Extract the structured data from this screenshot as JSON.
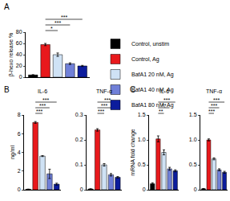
{
  "chart_data": [
    {
      "type": "bar",
      "panel": "A",
      "ylabel": "β-hexo release %",
      "legend": "right",
      "grid": false,
      "tick_labels": "y",
      "ylim": [
        0,
        80
      ],
      "yticks": [
        0,
        20,
        40,
        60,
        80
      ],
      "series": [
        {
          "name": "Control, unstim",
          "color": "#000000",
          "values": [
            4
          ],
          "errors": [
            0.5
          ]
        },
        {
          "name": "Control, Ag",
          "color": "#e8191c",
          "values": [
            58
          ],
          "errors": [
            2
          ]
        },
        {
          "name": "BafA1 20 nM, Ag",
          "color": "#cfe2f5",
          "values": [
            40
          ],
          "errors": [
            3
          ]
        },
        {
          "name": "BafA1 40 nM, Ag",
          "color": "#7080d8",
          "values": [
            24
          ],
          "errors": [
            1.5
          ]
        },
        {
          "name": "BafA1 80 nM, Ag",
          "color": "#0c1c9c",
          "values": [
            20
          ],
          "errors": [
            1
          ]
        }
      ],
      "comparisons": [
        {
          "groups": [
            "Control, Ag",
            "BafA1 20 nM, Ag"
          ],
          "label": "*"
        },
        {
          "groups": [
            "Control, Ag",
            "BafA1 40 nM, Ag"
          ],
          "label": "***"
        },
        {
          "groups": [
            "Control, Ag",
            "BafA1 80 nM, Ag"
          ],
          "label": "***"
        }
      ]
    },
    {
      "type": "bar",
      "panel": "B",
      "title": "IL-6",
      "ylabel": "ng/ml",
      "grid": false,
      "tick_labels": "y",
      "ylim": [
        0,
        8
      ],
      "yticks": [
        0,
        2,
        4,
        6,
        8
      ],
      "series": [
        {
          "name": "Control, unstim",
          "color": "#000000",
          "values": [
            0.05
          ],
          "errors": [
            0.02
          ]
        },
        {
          "name": "Control, Ag",
          "color": "#e8191c",
          "values": [
            7.2
          ],
          "errors": [
            0.1
          ]
        },
        {
          "name": "BafA1 20 nM, Ag",
          "color": "#cfe2f5",
          "values": [
            3.6
          ],
          "errors": [
            0.05
          ]
        },
        {
          "name": "BafA1 40 nM, Ag",
          "color": "#7080d8",
          "values": [
            1.7
          ],
          "errors": [
            0.5
          ]
        },
        {
          "name": "BafA1 80 nM, Ag",
          "color": "#0c1c9c",
          "values": [
            0.6
          ],
          "errors": [
            0.1
          ]
        }
      ],
      "comparisons": [
        {
          "groups": [
            "Control, Ag",
            "BafA1 20 nM, Ag"
          ],
          "label": "***"
        },
        {
          "groups": [
            "Control, Ag",
            "BafA1 40 nM, Ag"
          ],
          "label": "***"
        },
        {
          "groups": [
            "Control, Ag",
            "BafA1 80 nM, Ag"
          ],
          "label": "***"
        }
      ]
    },
    {
      "type": "bar",
      "title": "TNF-α",
      "grid": false,
      "tick_labels": "y",
      "ylim": [
        0,
        0.3
      ],
      "yticks": [
        0,
        0.1,
        0.2,
        0.3
      ],
      "series": [
        {
          "name": "Control, unstim",
          "color": "#000000",
          "values": [
            0.003
          ],
          "errors": [
            0.001
          ]
        },
        {
          "name": "Control, Ag",
          "color": "#e8191c",
          "values": [
            0.24
          ],
          "errors": [
            0.005
          ]
        },
        {
          "name": "BafA1 20 nM, Ag",
          "color": "#cfe2f5",
          "values": [
            0.1
          ],
          "errors": [
            0.005
          ]
        },
        {
          "name": "BafA1 40 nM, Ag",
          "color": "#7080d8",
          "values": [
            0.06
          ],
          "errors": [
            0.005
          ]
        },
        {
          "name": "BafA1 80 nM, Ag",
          "color": "#0c1c9c",
          "values": [
            0.05
          ],
          "errors": [
            0.003
          ]
        }
      ],
      "comparisons": [
        {
          "groups": [
            "Control, Ag",
            "BafA1 20 nM, Ag"
          ],
          "label": "***"
        },
        {
          "groups": [
            "Control, Ag",
            "BafA1 40 nM, Ag"
          ],
          "label": "***"
        },
        {
          "groups": [
            "Control, Ag",
            "BafA1 80 nM, Ag"
          ],
          "label": "***"
        }
      ]
    },
    {
      "type": "bar",
      "panel": "C",
      "title": "IL-6",
      "ylabel": "mRNA fold change",
      "grid": false,
      "tick_labels": "y",
      "ylim": [
        0,
        1.5
      ],
      "yticks": [
        0,
        0.5,
        {
          "value": 1,
          "label": "1.0"
        },
        1.5
      ],
      "series": [
        {
          "name": "Control, unstim",
          "color": "#000000",
          "values": [
            0.12
          ],
          "errors": [
            0.02
          ]
        },
        {
          "name": "Control, Ag",
          "color": "#e8191c",
          "values": [
            1.02
          ],
          "errors": [
            0.06
          ]
        },
        {
          "name": "BafA1 20 nM, Ag",
          "color": "#cfe2f5",
          "values": [
            0.75
          ],
          "errors": [
            0.05
          ]
        },
        {
          "name": "BafA1 40 nM, Ag",
          "color": "#7080d8",
          "values": [
            0.42
          ],
          "errors": [
            0.03
          ]
        },
        {
          "name": "BafA1 80 nM, Ag",
          "color": "#0c1c9c",
          "values": [
            0.38
          ],
          "errors": [
            0.02
          ]
        }
      ],
      "comparisons": [
        {
          "groups": [
            "Control, Ag",
            "BafA1 20 nM, Ag"
          ],
          "label": "**"
        },
        {
          "groups": [
            "Control, Ag",
            "BafA1 40 nM, Ag"
          ],
          "label": "**"
        },
        {
          "groups": [
            "Control, Ag",
            "BafA1 80 nM, Ag"
          ],
          "label": "***"
        }
      ]
    },
    {
      "type": "bar",
      "title": "TNF-α",
      "grid": false,
      "tick_labels": "y",
      "ylim": [
        0,
        1.5
      ],
      "yticks": [
        0,
        0.5,
        {
          "value": 1,
          "label": "1.0"
        },
        1.5
      ],
      "series": [
        {
          "name": "Control, unstim",
          "color": "#000000",
          "values": [
            0.02
          ],
          "errors": [
            0.005
          ]
        },
        {
          "name": "Control, Ag",
          "color": "#e8191c",
          "values": [
            1.0
          ],
          "errors": [
            0.02
          ]
        },
        {
          "name": "BafA1 20 nM, Ag",
          "color": "#cfe2f5",
          "values": [
            0.62
          ],
          "errors": [
            0.02
          ]
        },
        {
          "name": "BafA1 40 nM, Ag",
          "color": "#7080d8",
          "values": [
            0.4
          ],
          "errors": [
            0.02
          ]
        },
        {
          "name": "BafA1 80 nM, Ag",
          "color": "#0c1c9c",
          "values": [
            0.35
          ],
          "errors": [
            0.02
          ]
        }
      ],
      "comparisons": [
        {
          "groups": [
            "Control, Ag",
            "BafA1 20 nM, Ag"
          ],
          "label": "***"
        },
        {
          "groups": [
            "Control, Ag",
            "BafA1 40 nM, Ag"
          ],
          "label": "***"
        },
        {
          "groups": [
            "Control, Ag",
            "BafA1 80 nM, Ag"
          ],
          "label": "***"
        }
      ]
    }
  ]
}
